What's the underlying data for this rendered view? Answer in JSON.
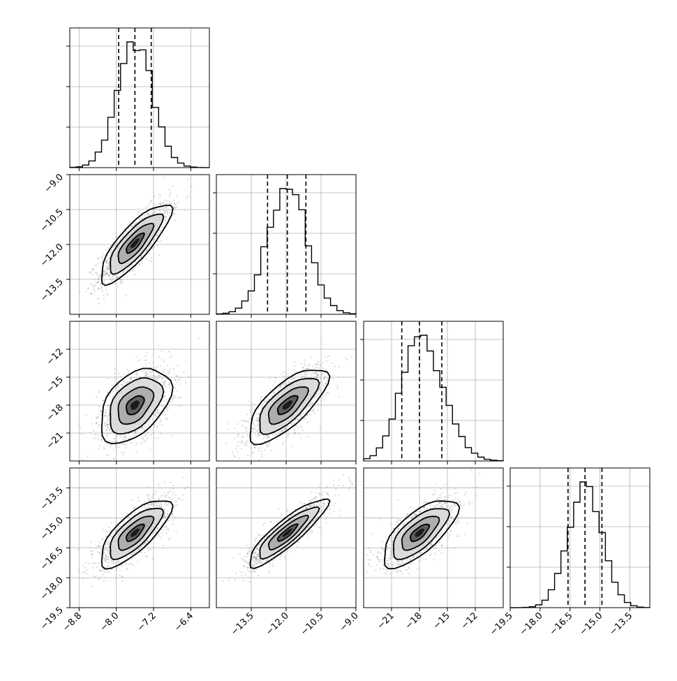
{
  "chart_data": {
    "type": "corner",
    "n_params": 4,
    "grid": true,
    "parameters": [
      {
        "index": 0,
        "mean": -7.6,
        "std": 0.38,
        "range": [
          -9.0,
          -6.0
        ],
        "quantiles": [
          -7.95,
          -7.6,
          -7.25
        ],
        "ticks": [
          -8.8,
          -8.0,
          -7.2,
          -6.4
        ],
        "tick_labels": [
          "−8.8",
          "−8.0",
          "−7.2",
          "−6.4"
        ]
      },
      {
        "index": 1,
        "mean": -11.95,
        "std": 0.85,
        "range": [
          -15.0,
          -9.0
        ],
        "quantiles": [
          -12.8,
          -11.95,
          -11.15
        ],
        "ticks": [
          -13.5,
          -12.0,
          -10.5,
          -9.0
        ],
        "tick_labels": [
          "−13.5",
          "−12.0",
          "−10.5",
          "−9.0"
        ]
      },
      {
        "index": 2,
        "mean": -18.0,
        "std": 2.0,
        "range": [
          -24.0,
          -9.0
        ],
        "quantiles": [
          -19.9,
          -18.0,
          -15.6
        ],
        "ticks": [
          -21,
          -18,
          -15,
          -12
        ],
        "tick_labels": [
          "−21",
          "−18",
          "−15",
          "−12"
        ]
      },
      {
        "index": 3,
        "mean": -15.75,
        "std": 0.85,
        "range": [
          -19.5,
          -12.5
        ],
        "quantiles": [
          -16.6,
          -15.75,
          -14.9
        ],
        "ticks": [
          -19.5,
          -18.0,
          -16.5,
          -15.0,
          -13.5
        ],
        "tick_labels": [
          "−19.5",
          "−18.0",
          "−16.5",
          "−15.0",
          "−13.5"
        ]
      }
    ],
    "correlations": {
      "1_0": 0.82,
      "2_0": 0.45,
      "2_1": 0.72,
      "3_0": 0.75,
      "3_1": 0.88,
      "3_2": 0.7
    },
    "n_samples_per_panel": 1400
  }
}
